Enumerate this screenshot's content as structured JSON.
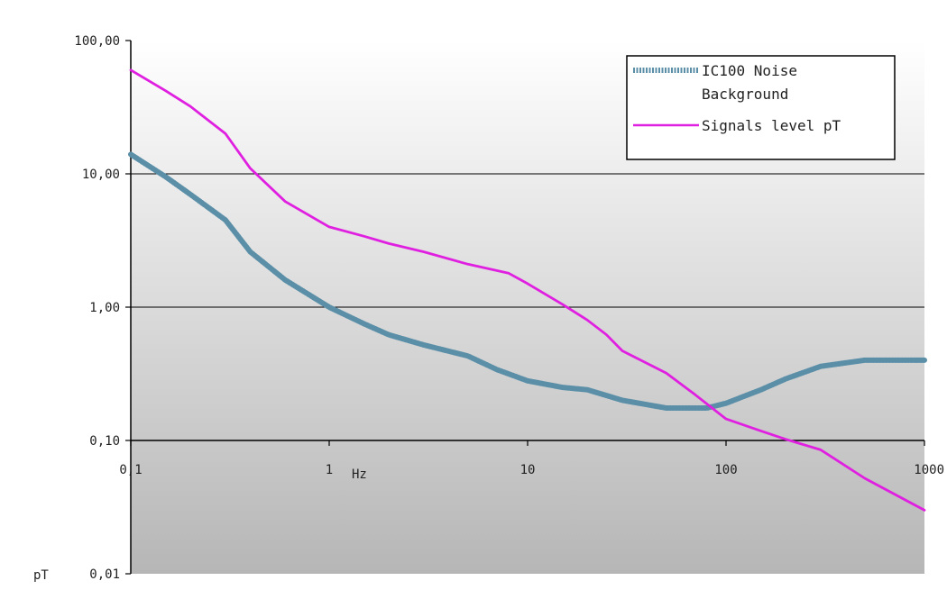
{
  "chart_data": {
    "type": "line",
    "title": "",
    "xscale": "log",
    "yscale": "log",
    "xlim": [
      0.1,
      1000
    ],
    "ylim": [
      0.01,
      100
    ],
    "xlabel": "Hz",
    "ylabel": "pT",
    "x_ticks": [
      {
        "value": 0.1,
        "label": "0,1"
      },
      {
        "value": 1,
        "label": "1"
      },
      {
        "value": 10,
        "label": "10"
      },
      {
        "value": 100,
        "label": "100"
      },
      {
        "value": 1000,
        "label": "1000"
      }
    ],
    "y_ticks": [
      {
        "value": 100,
        "label": "100,00"
      },
      {
        "value": 10,
        "label": "10,00"
      },
      {
        "value": 1,
        "label": "1,00"
      },
      {
        "value": 0.1,
        "label": "0,10"
      },
      {
        "value": 0.01,
        "label": "0,01"
      }
    ],
    "gridlines_y": [
      10,
      1,
      0.1
    ],
    "legend": {
      "position": "top-right"
    },
    "series": [
      {
        "name": "IC100 Noise Background",
        "color": "#5b8fa8",
        "style": "hatched",
        "points": [
          [
            0.1,
            14
          ],
          [
            0.15,
            9.5
          ],
          [
            0.2,
            7
          ],
          [
            0.3,
            4.5
          ],
          [
            0.4,
            2.6
          ],
          [
            0.6,
            1.6
          ],
          [
            1,
            1.0
          ],
          [
            1.5,
            0.75
          ],
          [
            2,
            0.62
          ],
          [
            3,
            0.52
          ],
          [
            5,
            0.43
          ],
          [
            7,
            0.34
          ],
          [
            10,
            0.28
          ],
          [
            15,
            0.25
          ],
          [
            20,
            0.24
          ],
          [
            30,
            0.2
          ],
          [
            50,
            0.175
          ],
          [
            80,
            0.175
          ],
          [
            100,
            0.19
          ],
          [
            150,
            0.24
          ],
          [
            200,
            0.29
          ],
          [
            300,
            0.36
          ],
          [
            500,
            0.4
          ],
          [
            700,
            0.4
          ],
          [
            1000,
            0.4
          ]
        ]
      },
      {
        "name": "Signals level pT",
        "color": "#e020e0",
        "style": "solid",
        "points": [
          [
            0.1,
            60
          ],
          [
            0.15,
            42
          ],
          [
            0.2,
            32
          ],
          [
            0.3,
            20
          ],
          [
            0.4,
            11
          ],
          [
            0.6,
            6.2
          ],
          [
            1,
            4.0
          ],
          [
            1.5,
            3.4
          ],
          [
            2,
            3.0
          ],
          [
            3,
            2.6
          ],
          [
            5,
            2.1
          ],
          [
            8,
            1.8
          ],
          [
            10,
            1.5
          ],
          [
            15,
            1.05
          ],
          [
            20,
            0.8
          ],
          [
            25,
            0.62
          ],
          [
            30,
            0.47
          ],
          [
            50,
            0.32
          ],
          [
            70,
            0.22
          ],
          [
            100,
            0.145
          ],
          [
            150,
            0.118
          ],
          [
            200,
            0.102
          ],
          [
            300,
            0.085
          ],
          [
            500,
            0.052
          ],
          [
            1000,
            0.03
          ]
        ]
      }
    ]
  }
}
